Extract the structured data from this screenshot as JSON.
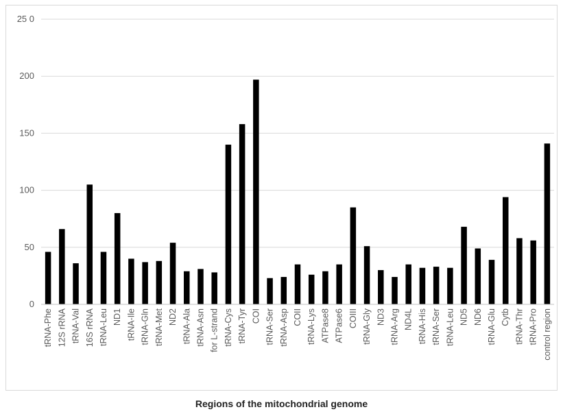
{
  "chart_data": {
    "type": "bar",
    "title": "",
    "xlabel": "Regions of the mitochondrial genome",
    "ylabel": "",
    "ylim": [
      0,
      250
    ],
    "y_ticks": [
      {
        "value": 0,
        "label": "0"
      },
      {
        "value": 50,
        "label": "50"
      },
      {
        "value": 100,
        "label": "100"
      },
      {
        "value": 150,
        "label": "150"
      },
      {
        "value": 200,
        "label": "200"
      },
      {
        "value": 250,
        "label": "25 0"
      }
    ],
    "grid": true,
    "bar_color": "#000000",
    "categories": [
      "tRNA-Phe",
      "12S rRNA",
      "tRNA-Val",
      "16S rRNA",
      "tRNA-Leu",
      "ND1",
      "tRNA-Ile",
      "tRNA-Gln",
      "tRNA-Met",
      "ND2",
      "tRNA-Ala",
      "tRNA-Asn",
      "for L-strand",
      "tRNA-Cys",
      "tRNA-Tyr",
      "COI",
      "tRNA-Ser",
      "tRNA-Asp",
      "COII",
      "tRNA-Lys",
      "ATPase8",
      "ATPase6",
      "COIII",
      "tRNA-Gly",
      "ND3",
      "tRNA-Arg",
      "ND4L",
      "tRNA-His",
      "tRNA-Ser",
      "tRNA-Leu",
      "ND5",
      "ND6",
      "tRNA-Glu",
      "Cytb",
      "tRNA-Thr",
      "tRNA-Pro",
      "control region"
    ],
    "values": [
      46,
      66,
      36,
      105,
      46,
      80,
      40,
      37,
      38,
      54,
      29,
      31,
      28,
      140,
      158,
      197,
      23,
      24,
      35,
      26,
      29,
      35,
      85,
      51,
      30,
      24,
      35,
      32,
      33,
      32,
      68,
      49,
      39,
      94,
      58,
      56,
      141
    ]
  }
}
